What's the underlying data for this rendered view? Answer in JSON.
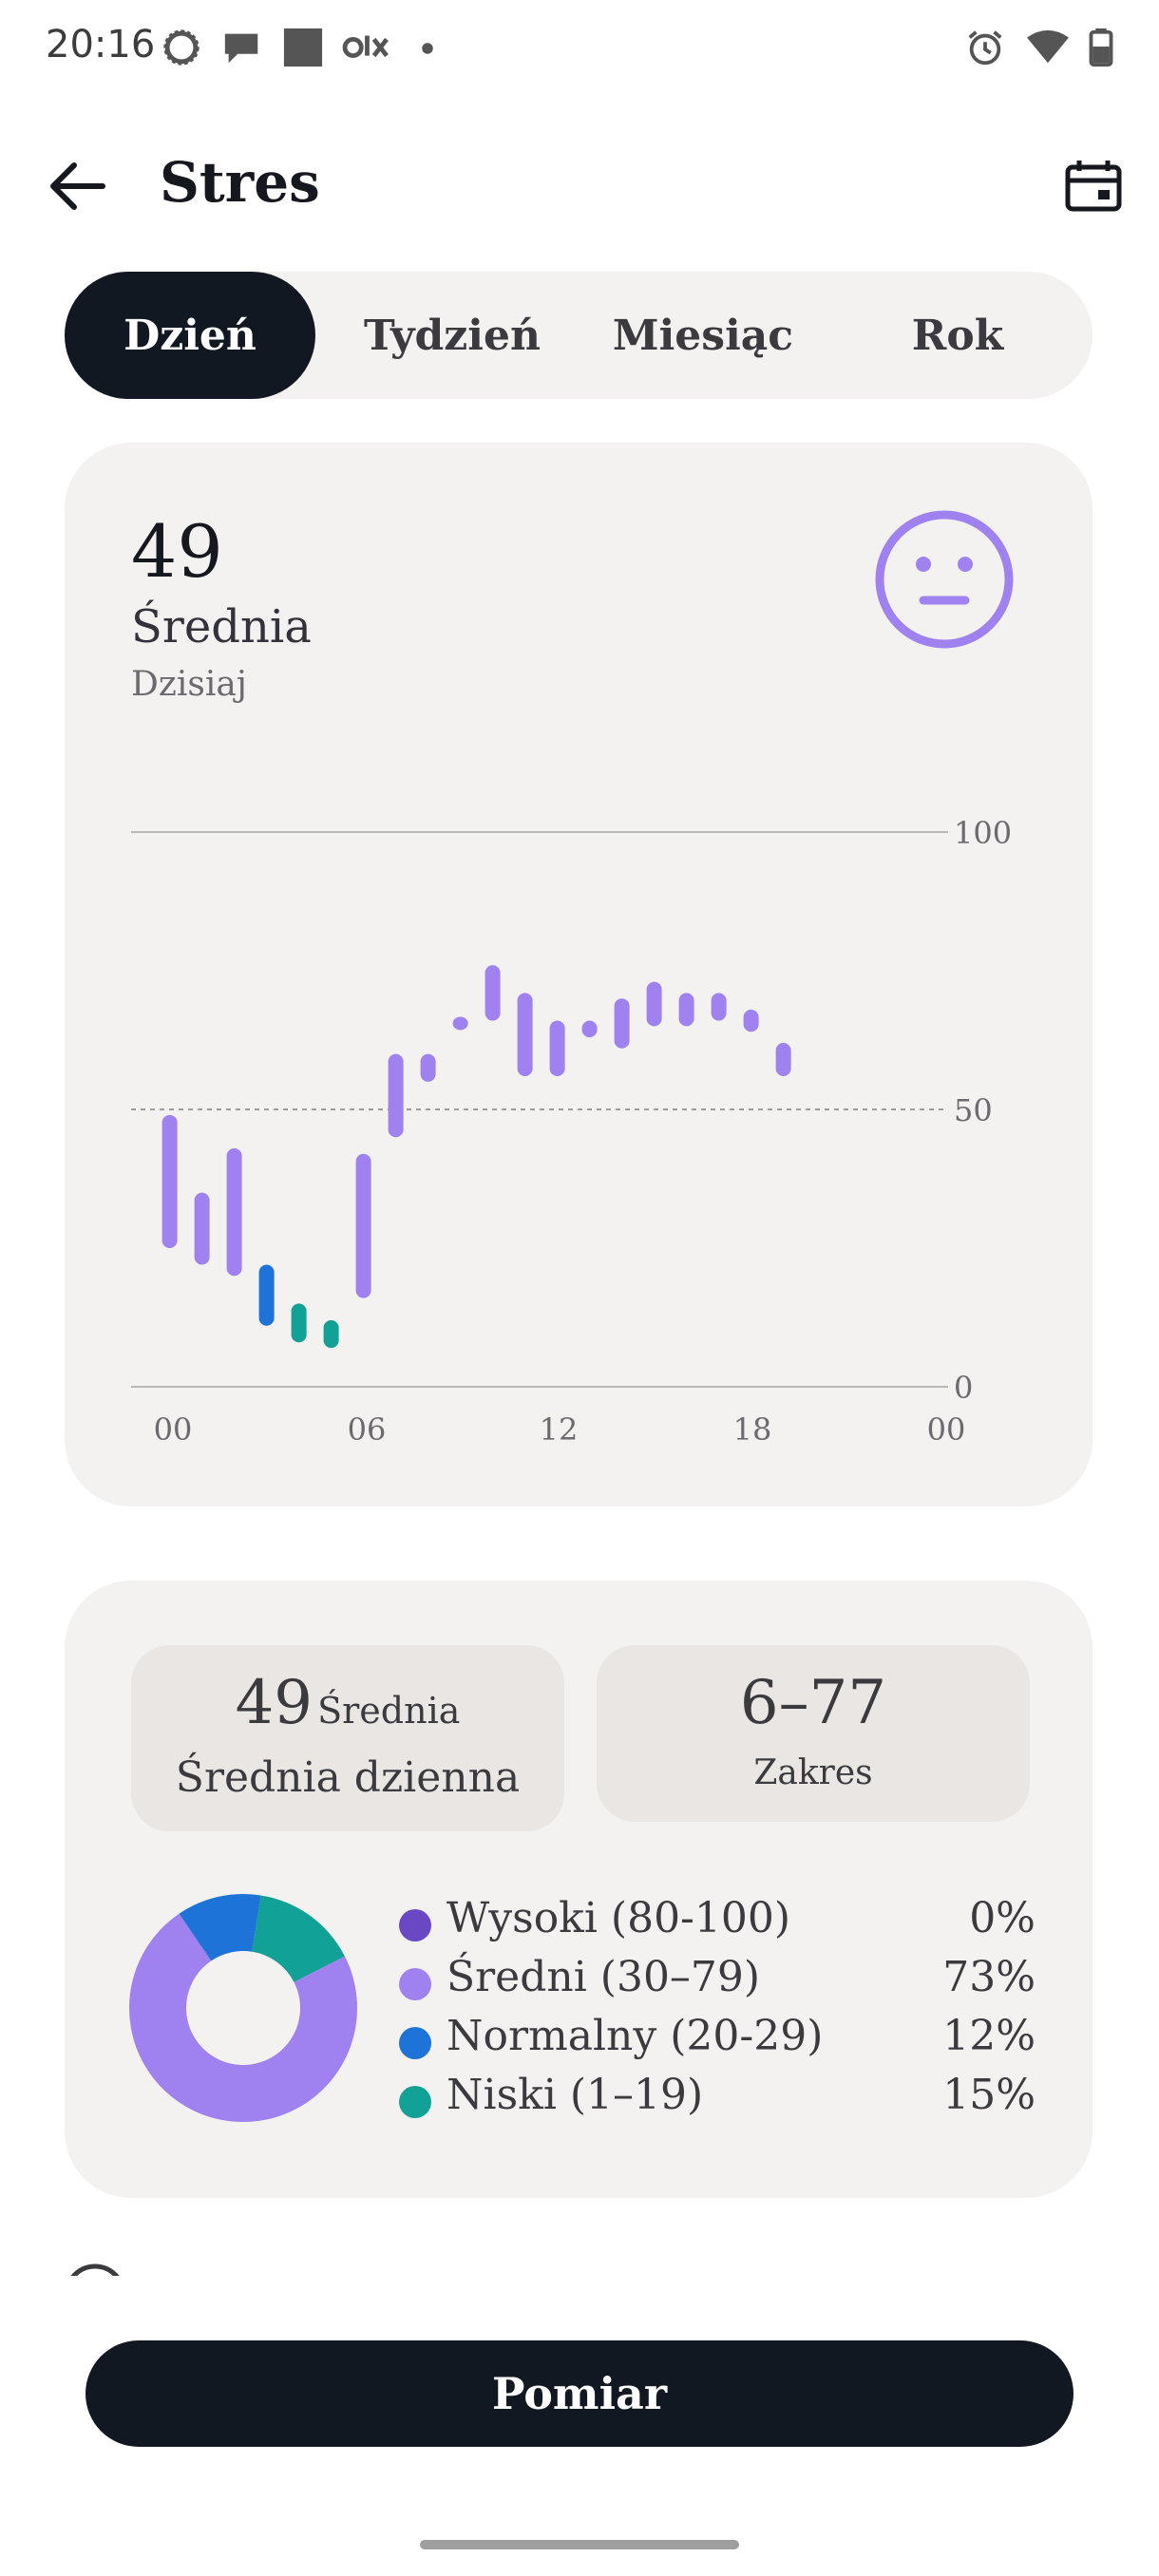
{
  "status_bar": {
    "time": "20:16",
    "left_icons": [
      "signal-messenger-icon",
      "chat-bubble-icon",
      "weather-moon-icon",
      "olx-app-icon",
      "notification-dot-icon"
    ],
    "right_icons": [
      "alarm-icon",
      "wifi-icon",
      "battery-icon"
    ]
  },
  "header": {
    "title": "Stres",
    "back_icon": "arrow-left-icon",
    "calendar_icon": "calendar-icon"
  },
  "tabs": [
    {
      "label": "Dzień",
      "active": true
    },
    {
      "label": "Tydzień",
      "active": false
    },
    {
      "label": "Miesiąc",
      "active": false
    },
    {
      "label": "Rok",
      "active": false
    }
  ],
  "summary": {
    "value": "49",
    "label": "Średnia",
    "period": "Dzisiaj",
    "mood_icon": "neutral-face-icon"
  },
  "chart_data": {
    "type": "range-bar",
    "x_tick_labels": [
      "00",
      "06",
      "12",
      "18",
      "00"
    ],
    "y_tick_labels": [
      "100",
      "50",
      "0"
    ],
    "ylim": [
      0,
      100
    ],
    "reference_line": 50,
    "x_unit": "hour",
    "bars": [
      {
        "x": 0.9,
        "low": 25,
        "high": 49,
        "level": "medium"
      },
      {
        "x": 1.9,
        "low": 22,
        "high": 35,
        "level": "medium"
      },
      {
        "x": 2.9,
        "low": 20,
        "high": 43,
        "level": "medium"
      },
      {
        "x": 3.9,
        "low": 11,
        "high": 22,
        "level": "normal"
      },
      {
        "x": 4.9,
        "low": 8,
        "high": 15,
        "level": "low"
      },
      {
        "x": 5.9,
        "low": 7,
        "high": 12,
        "level": "low"
      },
      {
        "x": 6.9,
        "low": 16,
        "high": 42,
        "level": "medium"
      },
      {
        "x": 7.9,
        "low": 45,
        "high": 60,
        "level": "medium"
      },
      {
        "x": 8.9,
        "low": 55,
        "high": 60,
        "level": "medium"
      },
      {
        "x": 9.9,
        "low": 65,
        "high": 66,
        "level": "medium"
      },
      {
        "x": 10.9,
        "low": 66,
        "high": 76,
        "level": "medium"
      },
      {
        "x": 11.9,
        "low": 56,
        "high": 71,
        "level": "medium"
      },
      {
        "x": 12.9,
        "low": 56,
        "high": 66,
        "level": "medium"
      },
      {
        "x": 13.9,
        "low": 63,
        "high": 66,
        "level": "medium"
      },
      {
        "x": 14.9,
        "low": 61,
        "high": 70,
        "level": "medium"
      },
      {
        "x": 15.9,
        "low": 65,
        "high": 73,
        "level": "medium"
      },
      {
        "x": 16.9,
        "low": 65,
        "high": 71,
        "level": "medium"
      },
      {
        "x": 17.9,
        "low": 66,
        "high": 71,
        "level": "medium"
      },
      {
        "x": 18.9,
        "low": 64,
        "high": 68,
        "level": "medium"
      },
      {
        "x": 19.9,
        "low": 56,
        "high": 62,
        "level": "medium"
      }
    ],
    "colors": {
      "medium": "#9f82ef",
      "normal": "#1e73d8",
      "low": "#12a196"
    }
  },
  "stats": {
    "daily_avg_value": "49",
    "daily_avg_unit": "Średnia",
    "daily_avg_label": "Średnia dzienna",
    "range_value": "6–77",
    "range_label": "Zakres"
  },
  "distribution": {
    "legend": [
      {
        "label": "Wysoki (80-100)",
        "percent": "0%",
        "value": 0,
        "color": "#6a48c4"
      },
      {
        "label": "Średni (30–79)",
        "percent": "73%",
        "value": 73,
        "color": "#9f82ef"
      },
      {
        "label": "Normalny (20-29)",
        "percent": "12%",
        "value": 12,
        "color": "#1e73d8"
      },
      {
        "label": "Niski (1–19)",
        "percent": "15%",
        "value": 15,
        "color": "#12a196"
      }
    ]
  },
  "measure_button": {
    "label": "Pomiar"
  }
}
